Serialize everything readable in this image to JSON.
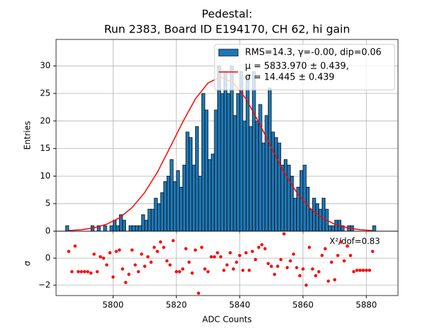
{
  "chart_data": [
    {
      "type": "histogram",
      "title": [
        "Pedestal:",
        "Run 2383, Board ID E194170, CH 62, hi gain"
      ],
      "ylabel": "Entries",
      "xlim": [
        5782,
        5890
      ],
      "xticks": [
        5800,
        5820,
        5840,
        5860,
        5880
      ],
      "ylim": [
        0,
        34.8
      ],
      "yticks": [
        0,
        5,
        10,
        15,
        20,
        25,
        30
      ],
      "grid": true,
      "legend": "upper right",
      "series": [
        {
          "name": [
            "RMS=14.3, γ=-0.00, dip=0.06"
          ],
          "type": "histogram",
          "color": "#1f77b4",
          "bins": [
            5785,
            5786,
            5787,
            5788,
            5789,
            5790,
            5791,
            5792,
            5793,
            5794,
            5795,
            5796,
            5797,
            5798,
            5799,
            5800,
            5801,
            5802,
            5803,
            5804,
            5805,
            5806,
            5807,
            5808,
            5809,
            5810,
            5811,
            5812,
            5813,
            5814,
            5815,
            5816,
            5817,
            5818,
            5819,
            5820,
            5821,
            5822,
            5823,
            5824,
            5825,
            5826,
            5827,
            5828,
            5829,
            5830,
            5831,
            5832,
            5833,
            5834,
            5835,
            5836,
            5837,
            5838,
            5839,
            5840,
            5841,
            5842,
            5843,
            5844,
            5845,
            5846,
            5847,
            5848,
            5849,
            5850,
            5851,
            5852,
            5853,
            5854,
            5855,
            5856,
            5857,
            5858,
            5859,
            5860,
            5861,
            5862,
            5863,
            5864,
            5865,
            5866,
            5867,
            5868,
            5869,
            5870,
            5871,
            5872,
            5873,
            5874,
            5875,
            5876,
            5877,
            5878,
            5879,
            5880,
            5881,
            5882,
            5883
          ],
          "values": [
            1,
            0,
            0,
            0,
            0,
            0,
            0,
            0,
            1,
            0,
            1,
            0,
            1,
            0,
            1,
            2,
            1,
            3,
            2,
            0,
            1,
            1,
            1,
            1,
            3,
            2,
            4,
            4,
            6,
            5,
            7,
            9,
            10,
            13,
            9,
            11,
            8,
            12,
            18,
            17,
            12,
            19,
            10,
            25,
            22,
            13,
            14,
            22,
            30,
            25,
            29,
            25,
            30,
            21,
            25,
            29,
            20,
            28,
            19,
            29,
            20,
            23,
            16,
            21,
            26,
            18,
            17,
            16,
            12,
            13,
            12,
            10,
            6,
            8,
            11,
            12,
            8,
            4,
            6,
            5,
            4,
            6,
            4,
            1,
            1,
            2,
            2,
            1,
            0,
            1,
            1,
            0,
            0,
            0,
            0,
            0,
            0,
            1
          ]
        },
        {
          "name": [
            "μ = 5833.970 ± 0.439,",
            "σ = 14.445 ± 0.439"
          ],
          "type": "line",
          "color": "#ff0000",
          "x": [
            5786,
            5790,
            5794,
            5798,
            5802,
            5806,
            5810,
            5814,
            5818,
            5822,
            5826,
            5830,
            5834,
            5838,
            5842,
            5846,
            5850,
            5854,
            5858,
            5862,
            5866,
            5870,
            5874,
            5878,
            5882
          ],
          "values": [
            0.11,
            0.27,
            0.61,
            1.26,
            2.41,
            4.27,
            7.03,
            10.7,
            15.2,
            19.8,
            24.0,
            26.9,
            28,
            26.9,
            24.0,
            19.8,
            15.2,
            10.7,
            7.03,
            4.27,
            2.41,
            1.26,
            0.61,
            0.27,
            0.11
          ]
        }
      ]
    },
    {
      "type": "scatter",
      "xlabel": "ADC Counts",
      "ylabel": "σ",
      "annotation": "X²/dof=0.83",
      "xlim": [
        5782,
        5890
      ],
      "xticks": [
        5800,
        5820,
        5840,
        5860,
        5880
      ],
      "ylim": [
        -2.77,
        2.0
      ],
      "yticks": [
        {
          "value": -2,
          "label": "−2"
        },
        0,
        2
      ],
      "grid": true,
      "series": [
        {
          "color": "#ff0000",
          "x": [
            5786,
            5787,
            5788,
            5789,
            5790,
            5791,
            5792,
            5793,
            5794,
            5795,
            5796,
            5797,
            5798,
            5799,
            5800,
            5801,
            5802,
            5803,
            5804,
            5805,
            5806,
            5807,
            5808,
            5809,
            5810,
            5811,
            5812,
            5813,
            5814,
            5815,
            5816,
            5817,
            5818,
            5819,
            5820,
            5821,
            5822,
            5823,
            5824,
            5825,
            5826,
            5827,
            5828,
            5829,
            5830,
            5831,
            5832,
            5833,
            5834,
            5835,
            5836,
            5837,
            5838,
            5839,
            5840,
            5841,
            5842,
            5843,
            5844,
            5845,
            5846,
            5847,
            5848,
            5849,
            5850,
            5851,
            5852,
            5853,
            5854,
            5855,
            5856,
            5857,
            5858,
            5859,
            5860,
            5861,
            5862,
            5863,
            5864,
            5865,
            5866,
            5867,
            5868,
            5869,
            5870,
            5871,
            5872,
            5873,
            5874,
            5875,
            5876,
            5877,
            5878,
            5879,
            5880,
            5881,
            5882
          ],
          "values": [
            0.5,
            -1,
            0.9,
            -1,
            -1,
            -1,
            -1,
            -1.1,
            0.3,
            -1,
            0.1,
            0,
            -0.5,
            0.4,
            -1.4,
            0.5,
            0.6,
            -0.8,
            -1.8,
            -1.2,
            0.6,
            -0.5,
            -1,
            0.3,
            -0.6,
            0.1,
            -0.3,
            0.8,
            0.5,
            1.2,
            0.8,
            -0.2,
            -0.5,
            1.3,
            -1,
            -1,
            -0.8,
            0.7,
            -0.3,
            -1.1,
            0.6,
            -2.6,
            0.8,
            -0.8,
            -1,
            0.1,
            0.1,
            0.4,
            0.1,
            -0.9,
            -0.5,
            0.4,
            -0.8,
            -0.3,
            0.2,
            -0.9,
            0.4,
            -0.9,
            0.5,
            -0.1,
            0.8,
            1,
            0.7,
            -0.4,
            -0.6,
            -1.2,
            -0.6,
            -0.1,
            1.8,
            -0.7,
            -0.2,
            0.3,
            -0.7,
            -1.3,
            -0.8,
            -2,
            0.8,
            -0.8,
            -1.3,
            -1,
            0.2,
            0.7,
            -1.7,
            -0.3,
            -1.6,
            0.2,
            1.2,
            -0.2,
            0.9,
            0.2,
            -1,
            -0.9,
            -0.9,
            -0.9,
            -0.9,
            -0.9,
            0.5
          ]
        }
      ]
    }
  ]
}
